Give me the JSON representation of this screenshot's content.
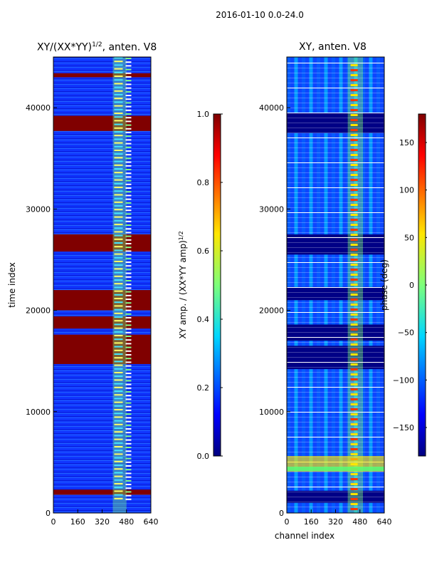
{
  "figure": {
    "suptitle": "2016-01-10 0.0-24.0"
  },
  "chart_data": [
    {
      "type": "heatmap",
      "title": "XY/(XX*YY)^{1/2}, anten. V8",
      "title_parts": {
        "main": "XY/(XX*YY)",
        "sup": "1/2",
        "tail": ", anten. V8"
      },
      "xlabel": "",
      "ylabel": "time index",
      "xlim": [
        0,
        640
      ],
      "ylim": [
        0,
        45000
      ],
      "xticks": [
        "0",
        "160",
        "320",
        "480",
        "640"
      ],
      "yticks": [
        "0",
        "10000",
        "20000",
        "30000",
        "40000"
      ],
      "colorbar": {
        "label_main": "XY amp. / (XX*YY amp)",
        "label_sup": "1/2",
        "range": [
          0,
          1.0
        ],
        "ticks": [
          "0.0",
          "0.2",
          "0.4",
          "0.6",
          "0.8",
          "1.0"
        ],
        "colormap": "jet"
      },
      "saturated_time_bands": [
        [
          43000,
          43400
        ],
        [
          37700,
          39200
        ],
        [
          25800,
          27500
        ],
        [
          20000,
          22000
        ],
        [
          18200,
          19400
        ],
        [
          14700,
          17600
        ],
        [
          1800,
          2300
        ]
      ],
      "bright_channel_band": [
        390,
        480
      ]
    },
    {
      "type": "heatmap",
      "title": "XY, anten. V8",
      "xlabel": "channel index",
      "ylabel": "",
      "xlim": [
        0,
        640
      ],
      "ylim": [
        0,
        45000
      ],
      "xticks": [
        "0",
        "160",
        "320",
        "480",
        "640"
      ],
      "yticks": [
        "0",
        "10000",
        "20000",
        "30000",
        "40000"
      ],
      "colorbar": {
        "label": "phase (deg)",
        "range": [
          -180,
          180
        ],
        "ticks": [
          "−150",
          "−100",
          "−50",
          "0",
          "50",
          "100",
          "150"
        ],
        "colormap": "jet"
      },
      "dark_time_bands": [
        [
          37500,
          39500
        ],
        [
          25500,
          27500
        ],
        [
          21000,
          22300
        ],
        [
          17000,
          18600
        ],
        [
          14200,
          16500
        ],
        [
          1000,
          2200
        ]
      ],
      "bright_channel_band": [
        400,
        500
      ]
    }
  ]
}
